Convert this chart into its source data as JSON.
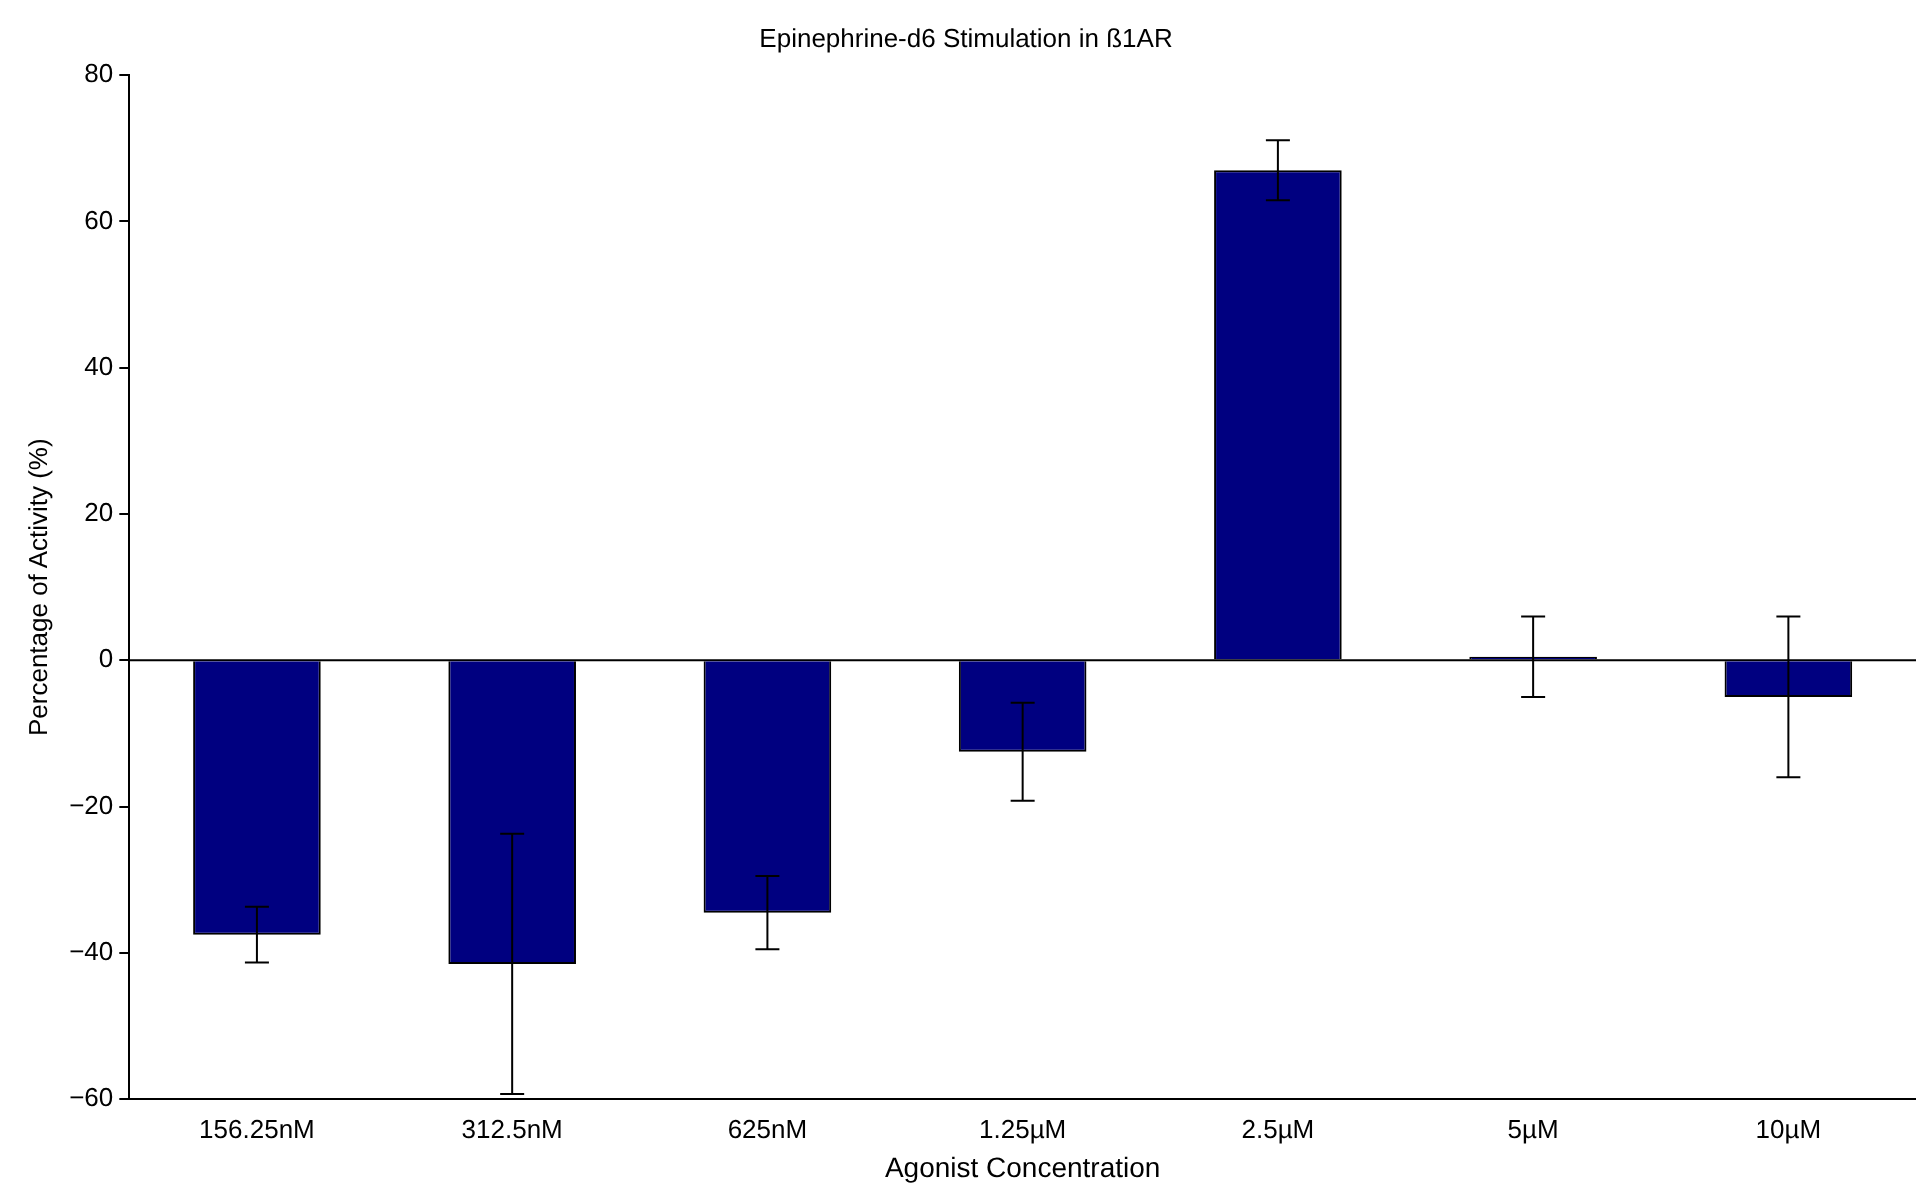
{
  "chart_data": {
    "type": "bar",
    "title": "Epinephrine-d6 Stimulation in ß1AR",
    "xlabel": "Agonist Concentration",
    "ylabel": "Percentage of Activity (%)",
    "categories": [
      "156.25nM",
      "312.5nM",
      "625nM",
      "1.25µM",
      "2.5µM",
      "5µM",
      "10µM"
    ],
    "values": [
      -37.5,
      -41.5,
      -34.5,
      -12.5,
      67,
      0.5,
      -5
    ],
    "errors": [
      3.8,
      17.8,
      5,
      6.7,
      4.1,
      5.5,
      11
    ],
    "color": "#000080",
    "ylim": [
      -60,
      80
    ],
    "yticks": [
      -60,
      -40,
      -20,
      0,
      20,
      40,
      60,
      80
    ],
    "ref_lines": [
      {
        "axis": "y",
        "value": 0
      }
    ],
    "grid": false,
    "legend": false
  }
}
